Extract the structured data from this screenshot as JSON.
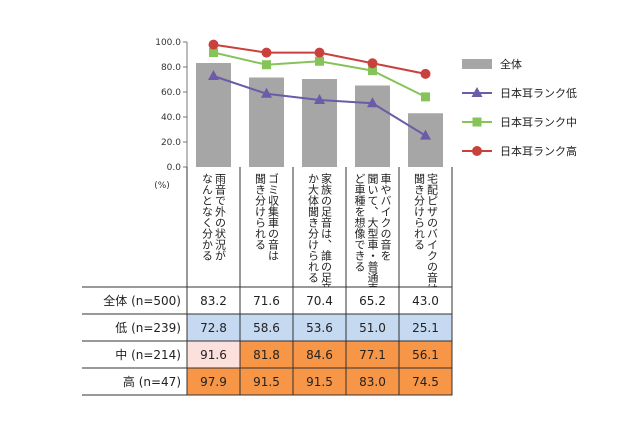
{
  "chart_data": {
    "type": "bar",
    "unit": "(%)",
    "ylim": [
      0,
      100
    ],
    "yticks": [
      "0.0",
      "20.0",
      "40.0",
      "60.0",
      "80.0",
      "100.0"
    ],
    "categories": [
      "雨音で外の状況がなんとなく分かる",
      "ゴミ収集車の音は聞き分けられる",
      "家族の足音は、誰の足音か大体聞き分けられる",
      "車やバイクの音を聞いて、大型車・普通車など車種を想像できる",
      "宅配ピザのバイクの音は聞き分けられる"
    ],
    "category_lines": [
      [
        "雨音で外の状況が",
        "なんとなく分かる"
      ],
      [
        "ゴミ収集車の音は",
        "聞き分けられる"
      ],
      [
        "家族の足音は、誰の足音",
        "か大体聞き分けられる"
      ],
      [
        "車やバイクの音を",
        "聞いて、大型車・普通車な",
        "ど車種を想像できる"
      ],
      [
        "宅配ピザのバイクの音は",
        "聞き分けられる"
      ]
    ],
    "series": [
      {
        "name": "全体",
        "kind": "bar",
        "color": "#a6a6a6",
        "values": [
          83.2,
          71.6,
          70.4,
          65.2,
          43.0
        ]
      },
      {
        "name": "日本耳ランク低",
        "kind": "line",
        "marker": "triangle",
        "color": "#6b5ba8",
        "values": [
          72.8,
          58.6,
          53.6,
          51.0,
          25.1
        ]
      },
      {
        "name": "日本耳ランク中",
        "kind": "line",
        "marker": "square",
        "color": "#86c45a",
        "values": [
          91.6,
          81.8,
          84.6,
          77.1,
          56.1
        ]
      },
      {
        "name": "日本耳ランク高",
        "kind": "line",
        "marker": "circle",
        "color": "#c9403c",
        "values": [
          97.9,
          91.5,
          91.5,
          83.0,
          74.5
        ]
      }
    ],
    "legend_position": "right",
    "grid": false
  },
  "table": {
    "rows": [
      {
        "label": "全体 (n=500)",
        "values": [
          "83.2",
          "71.6",
          "70.4",
          "65.2",
          "43.0"
        ],
        "fills": [
          "#ffffff",
          "#ffffff",
          "#ffffff",
          "#ffffff",
          "#ffffff"
        ]
      },
      {
        "label": "低 (n=239)",
        "values": [
          "72.8",
          "58.6",
          "53.6",
          "51.0",
          "25.1"
        ],
        "fills": [
          "#c5d9f1",
          "#c5d9f1",
          "#c5d9f1",
          "#c5d9f1",
          "#c5d9f1"
        ]
      },
      {
        "label": "中 (n=214)",
        "values": [
          "91.6",
          "81.8",
          "84.6",
          "77.1",
          "56.1"
        ],
        "fills": [
          "#fbe0dc",
          "#f79646",
          "#f79646",
          "#f79646",
          "#f79646"
        ]
      },
      {
        "label": "高 (n=47)",
        "values": [
          "97.9",
          "91.5",
          "91.5",
          "83.0",
          "74.5"
        ],
        "fills": [
          "#f79646",
          "#f79646",
          "#f79646",
          "#f79646",
          "#f79646"
        ]
      }
    ]
  }
}
